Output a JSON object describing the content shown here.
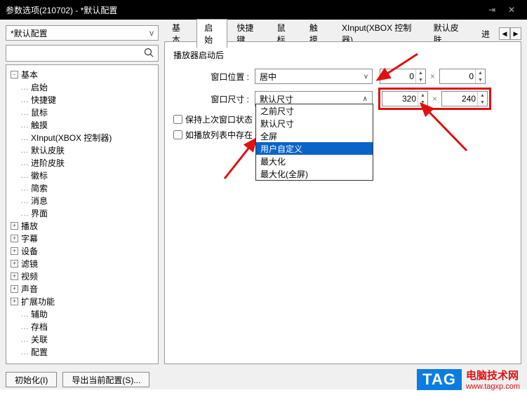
{
  "window": {
    "title": "参数选项(210702) - *默认配置"
  },
  "left": {
    "combo": "*默认配置",
    "search_placeholder": "",
    "tree": [
      {
        "exp": "-",
        "label": "基本",
        "lvl": 0
      },
      {
        "dash": true,
        "label": "启始",
        "lvl": 1
      },
      {
        "dash": true,
        "label": "快捷键",
        "lvl": 1
      },
      {
        "dash": true,
        "label": "鼠标",
        "lvl": 1
      },
      {
        "dash": true,
        "label": "触摸",
        "lvl": 1
      },
      {
        "dash": true,
        "label": "XInput(XBOX 控制器)",
        "lvl": 1
      },
      {
        "dash": true,
        "label": "默认皮肤",
        "lvl": 1
      },
      {
        "dash": true,
        "label": "进阶皮肤",
        "lvl": 1
      },
      {
        "dash": true,
        "label": "徽标",
        "lvl": 1
      },
      {
        "dash": true,
        "label": "简索",
        "lvl": 1
      },
      {
        "dash": true,
        "label": "消息",
        "lvl": 1
      },
      {
        "dash": true,
        "label": "界面",
        "lvl": 1
      },
      {
        "exp": "+",
        "label": "播放",
        "lvl": 0
      },
      {
        "exp": "+",
        "label": "字幕",
        "lvl": 0
      },
      {
        "exp": "+",
        "label": "设备",
        "lvl": 0
      },
      {
        "exp": "+",
        "label": "滤镜",
        "lvl": 0
      },
      {
        "exp": "+",
        "label": "视频",
        "lvl": 0
      },
      {
        "exp": "+",
        "label": "声音",
        "lvl": 0
      },
      {
        "exp": "+",
        "label": "扩展功能",
        "lvl": 0
      },
      {
        "dash": true,
        "label": "辅助",
        "lvl": 1
      },
      {
        "dash": true,
        "label": "存档",
        "lvl": 1
      },
      {
        "dash": true,
        "label": "关联",
        "lvl": 1
      },
      {
        "dash": true,
        "label": "配置",
        "lvl": 1
      }
    ]
  },
  "tabs": {
    "items": [
      "基本",
      "启始",
      "快捷键",
      "鼠标",
      "触摸",
      "XInput(XBOX 控制器)",
      "默认皮肤",
      "进"
    ],
    "active": 1,
    "nav_left": "◀",
    "nav_right": "▶"
  },
  "panel": {
    "group": "播放器启动后",
    "row_pos": {
      "label": "窗口位置 :",
      "value": "居中",
      "x": "0",
      "y": "0"
    },
    "row_size": {
      "label": "窗口尺寸 :",
      "value": "默认尺寸",
      "w": "320",
      "h": "240"
    },
    "check1": "保持上次窗口状态",
    "check2": "如播放列表中存在",
    "options": [
      "之前尺寸",
      "默认尺寸",
      "全屏",
      "用户自定义",
      "最大化",
      "最大化(全屏)"
    ],
    "selected_option": 3,
    "mult": "×"
  },
  "footer": {
    "init": "初始化(I)",
    "export": "导出当前配置(S)..."
  },
  "watermark": {
    "tag": "TAG",
    "cn": "电脑技术网",
    "url": "www.tagxp.com"
  },
  "colors": {
    "red": "#e01010",
    "blue": "#0a63c9"
  }
}
